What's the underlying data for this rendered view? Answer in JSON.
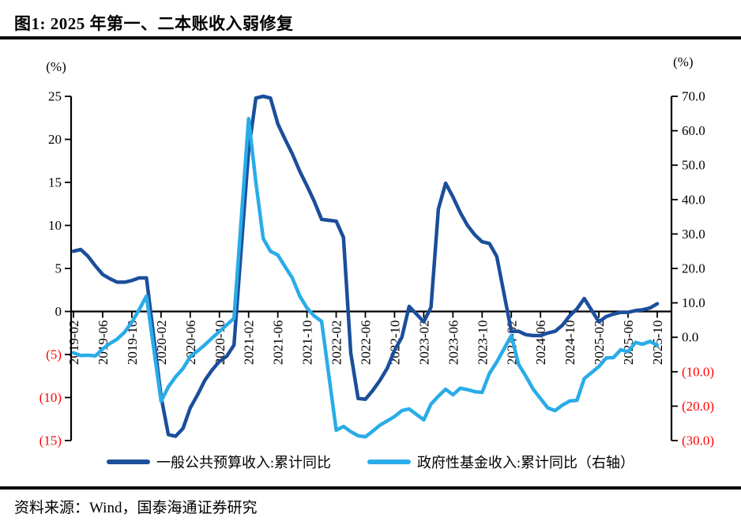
{
  "header": {
    "title": "图1:  2025 年第一、二本账收入弱修复"
  },
  "footer": {
    "source_note": "资料来源：Wind，国泰海通证券研究"
  },
  "chart_data": {
    "type": "line",
    "negative_tick_color": "#ff0000",
    "axis_color": "#000000",
    "left_axis": {
      "unit": "(%)",
      "min": -15,
      "max": 25,
      "tick_values": [
        25,
        20,
        15,
        10,
        5,
        0,
        -5,
        -10,
        -15
      ],
      "tick_labels": [
        "25",
        "20",
        "15",
        "10",
        "5",
        "0",
        "(5)",
        "(10)",
        "(15)"
      ]
    },
    "right_axis": {
      "unit": "(%)",
      "min": -30,
      "max": 70,
      "tick_values": [
        70,
        60,
        50,
        40,
        30,
        20,
        10,
        0,
        -10,
        -20,
        -30
      ],
      "tick_labels": [
        "70.0",
        "60.0",
        "50.0",
        "40.0",
        "30.0",
        "20.0",
        "10.0",
        "0.0",
        "(10.0)",
        "(20.0)",
        "(30.0)"
      ]
    },
    "x_axis": {
      "start_month": "2019-02",
      "end_month": "2025-10",
      "tick_labels": [
        "2019-02",
        "2019-06",
        "2019-10",
        "2020-02",
        "2020-06",
        "2020-10",
        "2021-02",
        "2021-06",
        "2021-10",
        "2022-02",
        "2022-06",
        "2022-10",
        "2023-02",
        "2023-06",
        "2023-10",
        "2024-02",
        "2024-06",
        "2024-10",
        "2025-02",
        "2025-06",
        "2025-10"
      ]
    },
    "series": [
      {
        "name": "一般公共预算收入:累计同比",
        "axis": "left",
        "color": "#1b4e9b",
        "points": [
          [
            "2019-02",
            7.0
          ],
          [
            "2019-03",
            7.2
          ],
          [
            "2019-04",
            6.4
          ],
          [
            "2019-05",
            5.3
          ],
          [
            "2019-06",
            4.3
          ],
          [
            "2019-07",
            3.8
          ],
          [
            "2019-08",
            3.4
          ],
          [
            "2019-09",
            3.4
          ],
          [
            "2019-10",
            3.6
          ],
          [
            "2019-11",
            3.9
          ],
          [
            "2019-12",
            3.9
          ],
          [
            "2020-02",
            -9.9
          ],
          [
            "2020-03",
            -14.3
          ],
          [
            "2020-04",
            -14.5
          ],
          [
            "2020-05",
            -13.6
          ],
          [
            "2020-06",
            -11.2
          ],
          [
            "2020-07",
            -9.7
          ],
          [
            "2020-08",
            -8.0
          ],
          [
            "2020-09",
            -6.8
          ],
          [
            "2020-10",
            -5.8
          ],
          [
            "2020-11",
            -5.2
          ],
          [
            "2020-12",
            -3.9
          ],
          [
            "2021-02",
            18.7
          ],
          [
            "2021-03",
            24.8
          ],
          [
            "2021-04",
            25.0
          ],
          [
            "2021-05",
            24.8
          ],
          [
            "2021-06",
            21.8
          ],
          [
            "2021-07",
            20.0
          ],
          [
            "2021-08",
            18.3
          ],
          [
            "2021-09",
            16.3
          ],
          [
            "2021-10",
            14.6
          ],
          [
            "2021-11",
            12.8
          ],
          [
            "2021-12",
            10.7
          ],
          [
            "2022-02",
            10.5
          ],
          [
            "2022-03",
            8.6
          ],
          [
            "2022-04",
            -4.8
          ],
          [
            "2022-05",
            -10.1
          ],
          [
            "2022-06",
            -10.2
          ],
          [
            "2022-07",
            -9.2
          ],
          [
            "2022-08",
            -8.0
          ],
          [
            "2022-09",
            -6.6
          ],
          [
            "2022-10",
            -4.5
          ],
          [
            "2022-11",
            -3.0
          ],
          [
            "2022-12",
            0.6
          ],
          [
            "2023-02",
            -1.2
          ],
          [
            "2023-03",
            0.5
          ],
          [
            "2023-04",
            11.9
          ],
          [
            "2023-05",
            14.9
          ],
          [
            "2023-06",
            13.3
          ],
          [
            "2023-07",
            11.5
          ],
          [
            "2023-08",
            10.0
          ],
          [
            "2023-09",
            8.9
          ],
          [
            "2023-10",
            8.1
          ],
          [
            "2023-11",
            7.9
          ],
          [
            "2023-12",
            6.4
          ],
          [
            "2024-02",
            -2.3
          ],
          [
            "2024-03",
            -2.3
          ],
          [
            "2024-04",
            -2.7
          ],
          [
            "2024-05",
            -2.8
          ],
          [
            "2024-06",
            -2.8
          ],
          [
            "2024-07",
            -2.5
          ],
          [
            "2024-08",
            -2.3
          ],
          [
            "2024-09",
            -1.6
          ],
          [
            "2024-10",
            -0.5
          ],
          [
            "2024-11",
            0.3
          ],
          [
            "2024-12",
            1.5
          ],
          [
            "2025-02",
            -1.2
          ],
          [
            "2025-03",
            -0.6
          ],
          [
            "2025-04",
            -0.3
          ],
          [
            "2025-05",
            -0.1
          ],
          [
            "2025-06",
            -0.1
          ],
          [
            "2025-07",
            0.1
          ],
          [
            "2025-08",
            0.2
          ],
          [
            "2025-09",
            0.4
          ],
          [
            "2025-10",
            0.9
          ]
        ]
      },
      {
        "name": "政府性基金收入:累计同比（右轴）",
        "axis": "right",
        "color": "#29ace8",
        "points": [
          [
            "2019-02",
            -4.5
          ],
          [
            "2019-03",
            -5.3
          ],
          [
            "2019-04",
            -5.2
          ],
          [
            "2019-05",
            -5.4
          ],
          [
            "2019-06",
            -3.4
          ],
          [
            "2019-07",
            -1.8
          ],
          [
            "2019-08",
            -0.5
          ],
          [
            "2019-09",
            1.5
          ],
          [
            "2019-10",
            4.4
          ],
          [
            "2019-11",
            8.0
          ],
          [
            "2019-12",
            12.0
          ],
          [
            "2020-02",
            -18.6
          ],
          [
            "2020-03",
            -14.4
          ],
          [
            "2020-04",
            -11.5
          ],
          [
            "2020-05",
            -9.1
          ],
          [
            "2020-06",
            -5.6
          ],
          [
            "2020-07",
            -4.0
          ],
          [
            "2020-08",
            -2.2
          ],
          [
            "2020-09",
            -0.2
          ],
          [
            "2020-10",
            1.7
          ],
          [
            "2020-11",
            3.6
          ],
          [
            "2020-12",
            5.5
          ],
          [
            "2021-02",
            63.5
          ],
          [
            "2021-03",
            45.0
          ],
          [
            "2021-04",
            28.7
          ],
          [
            "2021-05",
            25.0
          ],
          [
            "2021-06",
            23.9
          ],
          [
            "2021-07",
            20.5
          ],
          [
            "2021-08",
            17.2
          ],
          [
            "2021-09",
            12.0
          ],
          [
            "2021-10",
            8.5
          ],
          [
            "2021-11",
            6.2
          ],
          [
            "2021-12",
            4.6
          ],
          [
            "2022-02",
            -27.0
          ],
          [
            "2022-03",
            -25.9
          ],
          [
            "2022-04",
            -27.4
          ],
          [
            "2022-05",
            -28.6
          ],
          [
            "2022-06",
            -28.9
          ],
          [
            "2022-07",
            -27.3
          ],
          [
            "2022-08",
            -25.5
          ],
          [
            "2022-09",
            -24.3
          ],
          [
            "2022-10",
            -23.0
          ],
          [
            "2022-11",
            -21.3
          ],
          [
            "2022-12",
            -20.8
          ],
          [
            "2023-02",
            -24.0
          ],
          [
            "2023-03",
            -19.4
          ],
          [
            "2023-04",
            -17.1
          ],
          [
            "2023-05",
            -15.1
          ],
          [
            "2023-06",
            -16.7
          ],
          [
            "2023-07",
            -14.8
          ],
          [
            "2023-08",
            -15.2
          ],
          [
            "2023-09",
            -15.8
          ],
          [
            "2023-10",
            -16.0
          ],
          [
            "2023-11",
            -10.5
          ],
          [
            "2023-12",
            -7.2
          ],
          [
            "2024-02",
            0.5
          ],
          [
            "2024-03",
            -7.9
          ],
          [
            "2024-04",
            -11.3
          ],
          [
            "2024-05",
            -15.1
          ],
          [
            "2024-06",
            -17.8
          ],
          [
            "2024-07",
            -20.5
          ],
          [
            "2024-08",
            -21.3
          ],
          [
            "2024-09",
            -19.7
          ],
          [
            "2024-10",
            -18.5
          ],
          [
            "2024-11",
            -18.3
          ],
          [
            "2024-12",
            -12.0
          ],
          [
            "2025-02",
            -8.5
          ],
          [
            "2025-03",
            -6.0
          ],
          [
            "2025-04",
            -5.9
          ],
          [
            "2025-05",
            -3.6
          ],
          [
            "2025-06",
            -4.2
          ],
          [
            "2025-07",
            -1.5
          ],
          [
            "2025-08",
            -2.0
          ],
          [
            "2025-09",
            -1.2
          ],
          [
            "2025-10",
            -2.3
          ]
        ]
      }
    ]
  }
}
